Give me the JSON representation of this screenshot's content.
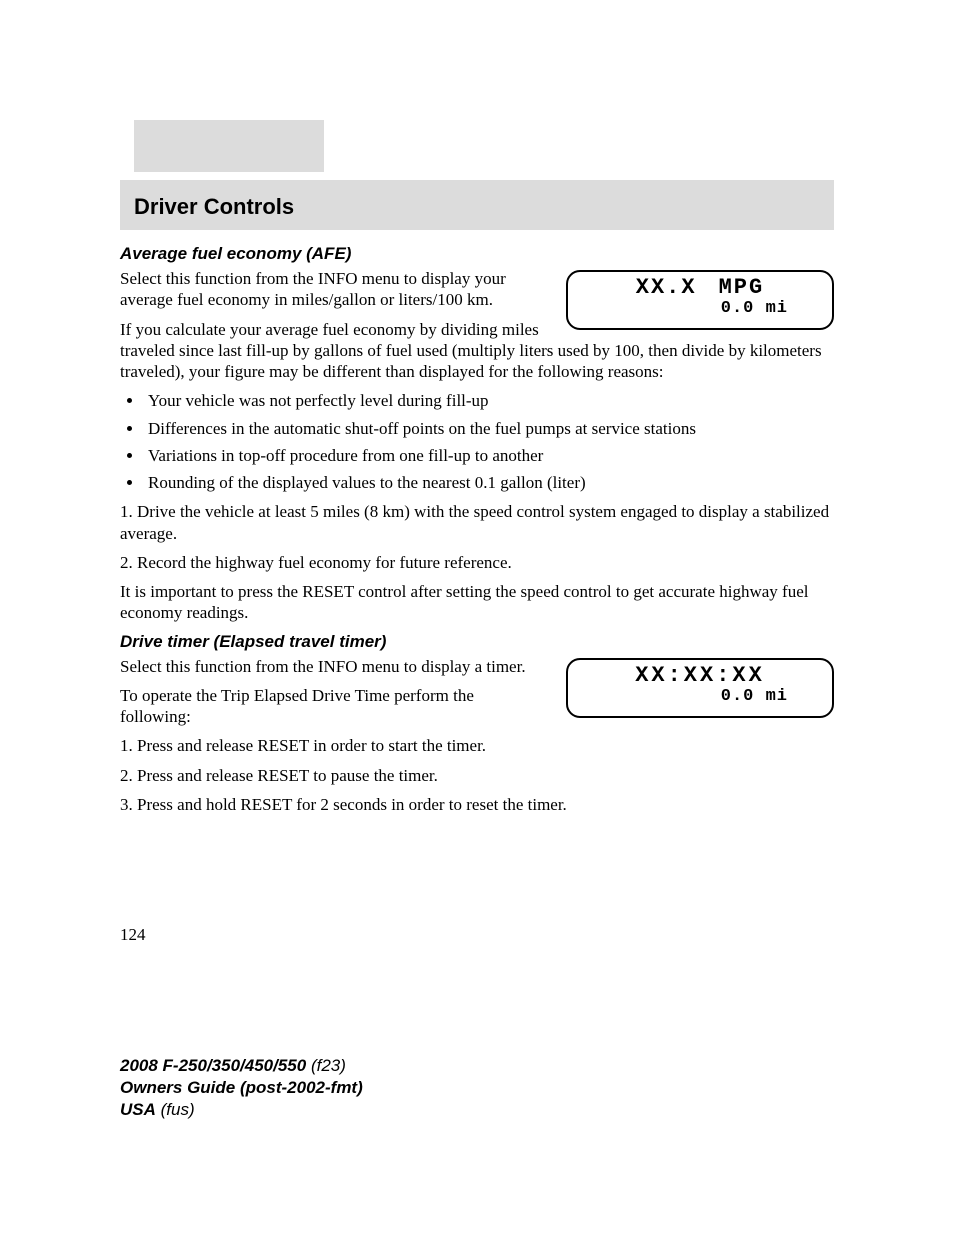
{
  "header": {
    "title": "Driver Controls"
  },
  "section1": {
    "heading": "Average fuel economy (AFE)",
    "para1": "Select this function from the INFO menu to display your average fuel economy in miles/gallon or liters/100 km.",
    "para2": "If you calculate your average fuel economy by dividing miles traveled since last fill-up by gallons of fuel used (multiply liters used by 100, then divide by kilometers traveled), your figure may be different than displayed for the following reasons:",
    "bullets": [
      "Your vehicle was not perfectly level during fill-up",
      "Differences in the automatic shut-off points on the fuel pumps at service stations",
      "Variations in top-off procedure from one fill-up to another",
      "Rounding of the displayed values to the nearest 0.1 gallon (liter)"
    ],
    "step1": "1. Drive the vehicle at least 5 miles (8 km) with the speed control system engaged to display a stabilized average.",
    "step2": "2. Record the highway fuel economy for future reference.",
    "note": "It is important to press the RESET control after setting the speed control to get accurate highway fuel economy readings.",
    "display": {
      "line1a": "XX.X",
      "line1b": "MPG",
      "line2": "0.0 mi"
    }
  },
  "section2": {
    "heading": "Drive timer (Elapsed travel timer)",
    "para1": "Select this function from the INFO menu to display a timer.",
    "para2": "To operate the Trip Elapsed Drive Time perform the following:",
    "step1": "1. Press and release RESET in order to start the timer.",
    "step2": "2. Press and release RESET to pause the timer.",
    "step3": "3. Press and hold RESET for 2 seconds in order to reset the timer.",
    "display": {
      "line1": "XX:XX:XX",
      "line2": "0.0 mi"
    }
  },
  "pageNumber": "124",
  "footer": {
    "model": "2008 F-250/350/450/550",
    "modelCode": "(f23)",
    "guide": "Owners Guide (post-2002-fmt)",
    "region": "USA",
    "regionCode": "(fus)"
  }
}
